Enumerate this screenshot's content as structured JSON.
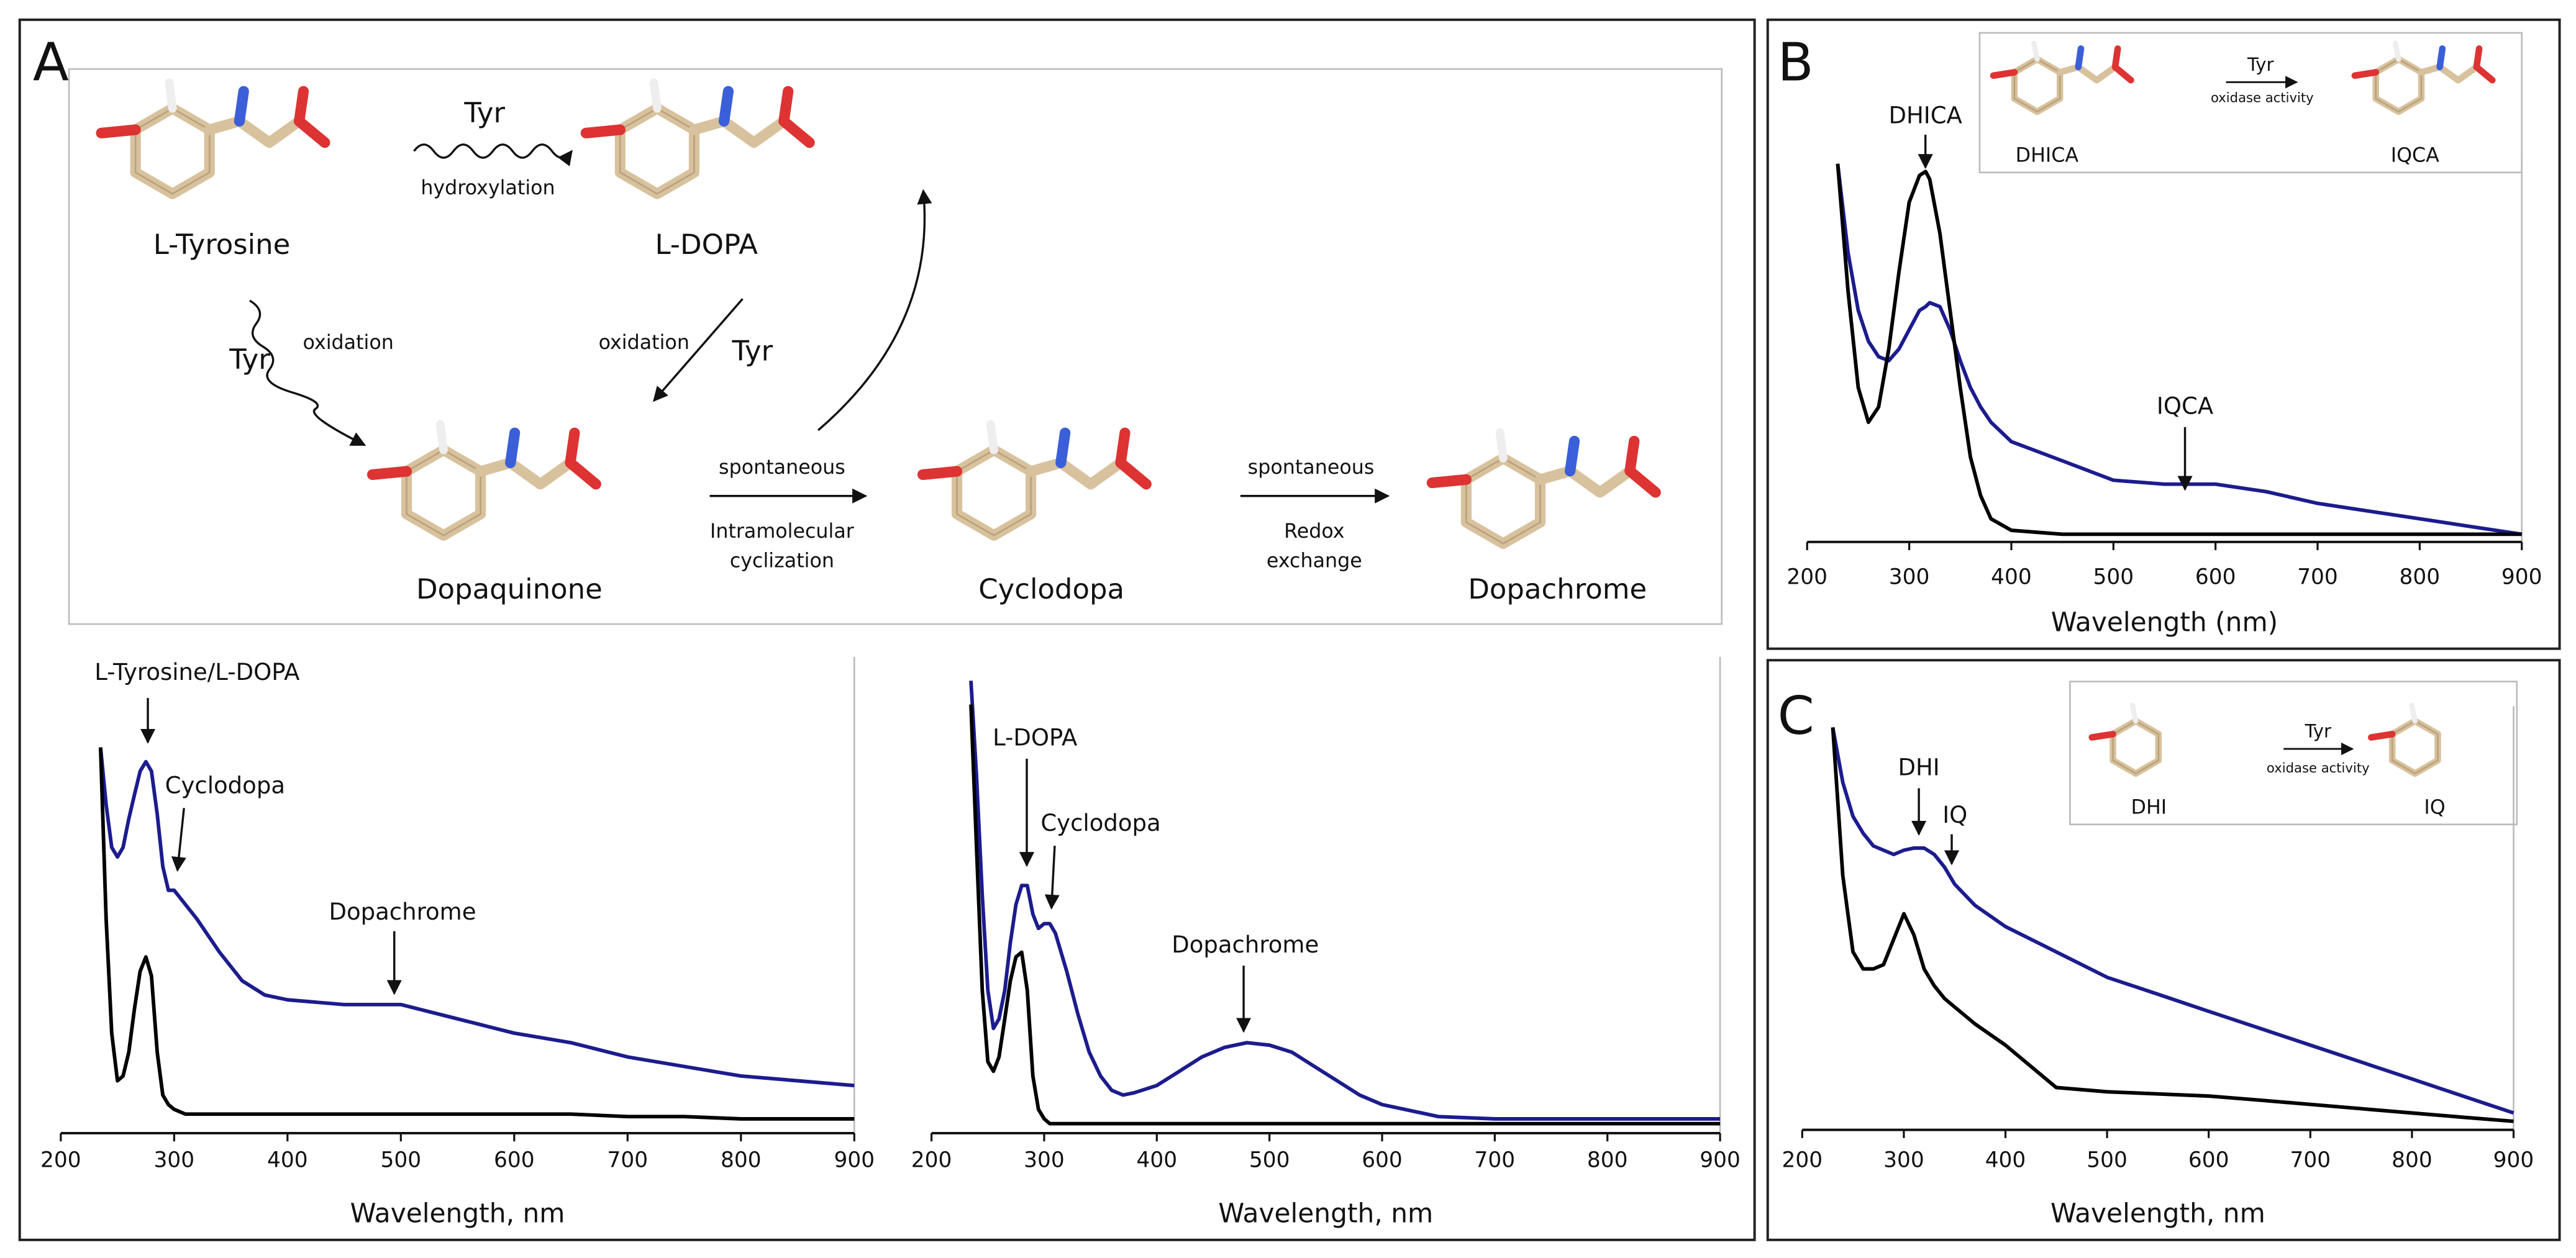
{
  "panels": [
    "A",
    "B",
    "C"
  ],
  "scheme": {
    "compounds": [
      "L-Tyrosine",
      "L-DOPA",
      "Dopaquinone",
      "Cyclodopa",
      "Dopachrome"
    ],
    "labels": [
      "Tyr",
      "hydroxylation",
      "Tyr",
      "oxidation",
      "oxidation",
      "Tyr",
      "spontaneous",
      "Intramolecular",
      "cyclization",
      "spontaneous",
      "Redox",
      "exchange"
    ]
  },
  "insets": [
    {
      "reactant": "DHICA",
      "enzyme": "Tyr",
      "activity": "oxidase activity",
      "product": "IQCA"
    },
    {
      "reactant": "DHI",
      "enzyme": "Tyr",
      "activity": "oxidase activity",
      "product": "IQ"
    }
  ],
  "chart_data": [
    {
      "type": "line",
      "x_label": "Wavelength, nm",
      "xlim": [
        200,
        900
      ],
      "xticks": [
        200,
        300,
        400,
        500,
        600,
        700,
        800,
        900
      ],
      "ylim": [
        0,
        1
      ],
      "annotations": [
        "L-Tyrosine/L-DOPA",
        "Cyclodopa",
        "Dopachrome"
      ],
      "x": [
        235,
        240,
        245,
        250,
        255,
        260,
        265,
        270,
        275,
        280,
        285,
        290,
        295,
        300,
        310,
        320,
        340,
        360,
        380,
        400,
        450,
        500,
        550,
        600,
        650,
        700,
        750,
        800,
        850,
        900
      ],
      "series": [
        {
          "color": "#1c1c8e",
          "values": [
            0.81,
            0.69,
            0.6,
            0.58,
            0.6,
            0.66,
            0.71,
            0.76,
            0.78,
            0.76,
            0.67,
            0.56,
            0.51,
            0.51,
            0.48,
            0.45,
            0.38,
            0.32,
            0.29,
            0.28,
            0.27,
            0.27,
            0.24,
            0.21,
            0.19,
            0.16,
            0.14,
            0.12,
            0.11,
            0.1
          ]
        },
        {
          "color": "#000000",
          "values": [
            0.81,
            0.45,
            0.21,
            0.11,
            0.12,
            0.17,
            0.26,
            0.34,
            0.37,
            0.33,
            0.17,
            0.08,
            0.06,
            0.05,
            0.04,
            0.04,
            0.04,
            0.04,
            0.04,
            0.04,
            0.04,
            0.04,
            0.04,
            0.04,
            0.04,
            0.035,
            0.035,
            0.03,
            0.03,
            0.03
          ]
        }
      ]
    },
    {
      "type": "line",
      "x_label": "Wavelength, nm",
      "xlim": [
        200,
        900
      ],
      "xticks": [
        200,
        300,
        400,
        500,
        600,
        700,
        800,
        900
      ],
      "ylim": [
        0,
        1
      ],
      "annotations": [
        "L-DOPA",
        "Cyclodopa",
        "Dopachrome"
      ],
      "x": [
        235,
        240,
        245,
        250,
        255,
        260,
        265,
        270,
        275,
        280,
        285,
        290,
        295,
        300,
        305,
        310,
        320,
        330,
        340,
        350,
        360,
        370,
        380,
        400,
        420,
        440,
        460,
        480,
        500,
        520,
        540,
        560,
        580,
        600,
        650,
        700,
        750,
        800,
        850,
        900
      ],
      "series": [
        {
          "color": "#1c1c8e",
          "values": [
            0.95,
            0.75,
            0.5,
            0.3,
            0.22,
            0.24,
            0.3,
            0.4,
            0.48,
            0.52,
            0.52,
            0.46,
            0.43,
            0.44,
            0.44,
            0.42,
            0.34,
            0.25,
            0.17,
            0.12,
            0.09,
            0.08,
            0.085,
            0.1,
            0.13,
            0.16,
            0.18,
            0.19,
            0.185,
            0.17,
            0.14,
            0.11,
            0.08,
            0.06,
            0.035,
            0.03,
            0.03,
            0.03,
            0.03,
            0.03
          ]
        },
        {
          "color": "#000000",
          "values": [
            0.9,
            0.6,
            0.3,
            0.15,
            0.13,
            0.16,
            0.24,
            0.32,
            0.37,
            0.38,
            0.3,
            0.12,
            0.05,
            0.03,
            0.02,
            0.02,
            0.02,
            0.02,
            0.02,
            0.02,
            0.02,
            0.02,
            0.02,
            0.02,
            0.02,
            0.02,
            0.02,
            0.02,
            0.02,
            0.02,
            0.02,
            0.02,
            0.02,
            0.02,
            0.02,
            0.02,
            0.02,
            0.02,
            0.02,
            0.02
          ]
        }
      ]
    },
    {
      "type": "line",
      "x_label": "Wavelength (nm)",
      "xlim": [
        200,
        900
      ],
      "xticks": [
        200,
        300,
        400,
        500,
        600,
        700,
        800,
        900
      ],
      "ylim": [
        0,
        1
      ],
      "annotations": [
        "DHICA",
        "IQCA"
      ],
      "x": [
        230,
        240,
        250,
        260,
        270,
        280,
        290,
        300,
        310,
        316,
        320,
        330,
        340,
        350,
        360,
        370,
        380,
        400,
        450,
        500,
        550,
        600,
        650,
        700,
        750,
        800,
        850,
        900
      ],
      "series": [
        {
          "color": "#1c1c8e",
          "values": [
            0.98,
            0.75,
            0.6,
            0.52,
            0.48,
            0.47,
            0.5,
            0.55,
            0.6,
            0.61,
            0.62,
            0.61,
            0.55,
            0.47,
            0.4,
            0.35,
            0.31,
            0.26,
            0.21,
            0.16,
            0.15,
            0.15,
            0.13,
            0.1,
            0.08,
            0.06,
            0.04,
            0.02
          ]
        },
        {
          "color": "#000000",
          "values": [
            0.98,
            0.65,
            0.4,
            0.31,
            0.35,
            0.5,
            0.7,
            0.88,
            0.95,
            0.96,
            0.94,
            0.8,
            0.6,
            0.4,
            0.22,
            0.12,
            0.06,
            0.03,
            0.02,
            0.02,
            0.02,
            0.02,
            0.02,
            0.02,
            0.02,
            0.02,
            0.02,
            0.02
          ]
        }
      ]
    },
    {
      "type": "line",
      "x_label": "Wavelength, nm",
      "xlim": [
        200,
        900
      ],
      "xticks": [
        200,
        300,
        400,
        500,
        600,
        700,
        800,
        900
      ],
      "ylim": [
        0,
        1
      ],
      "annotations": [
        "DHI",
        "IQ"
      ],
      "x": [
        230,
        240,
        250,
        260,
        270,
        280,
        290,
        300,
        310,
        320,
        330,
        340,
        350,
        370,
        400,
        450,
        500,
        550,
        600,
        650,
        700,
        750,
        800,
        850,
        900
      ],
      "series": [
        {
          "color": "#1c1c8e",
          "values": [
            0.95,
            0.82,
            0.74,
            0.7,
            0.67,
            0.66,
            0.65,
            0.66,
            0.665,
            0.665,
            0.65,
            0.62,
            0.58,
            0.53,
            0.48,
            0.42,
            0.36,
            0.32,
            0.28,
            0.24,
            0.2,
            0.16,
            0.12,
            0.08,
            0.04
          ]
        },
        {
          "color": "#000000",
          "values": [
            0.95,
            0.6,
            0.42,
            0.38,
            0.38,
            0.39,
            0.45,
            0.51,
            0.46,
            0.38,
            0.34,
            0.31,
            0.29,
            0.25,
            0.2,
            0.1,
            0.09,
            0.085,
            0.08,
            0.07,
            0.06,
            0.05,
            0.04,
            0.03,
            0.02
          ]
        }
      ]
    }
  ]
}
